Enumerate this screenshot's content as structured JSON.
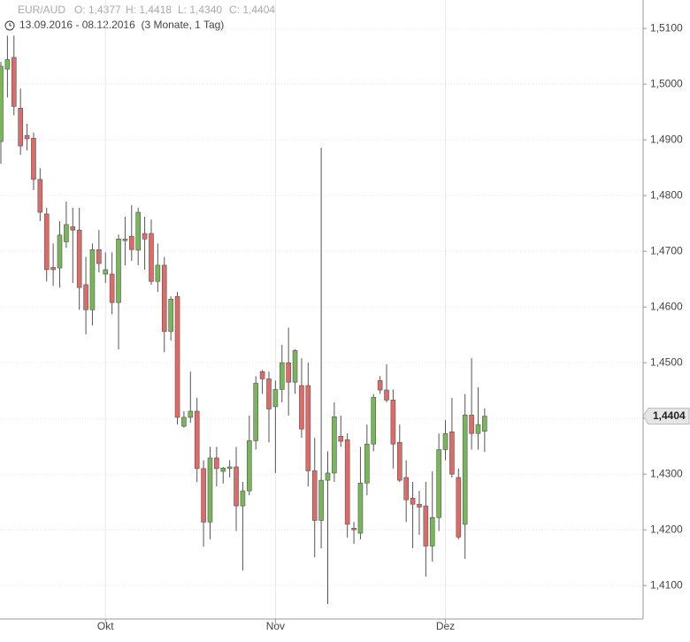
{
  "chart_data": {
    "type": "candlestick",
    "title": "EUR/AUD",
    "ohlc_labels": [
      "O: 1,4377",
      "H: 1,4418",
      "L: 1,4340",
      "C: 1,4404"
    ],
    "subtitle": "13.09.2016 - 08.12.2016  (3 Monate, 1 Tag)",
    "categories": [
      null,
      null,
      null,
      null,
      null,
      null,
      null,
      null,
      null,
      null,
      null,
      null,
      null,
      null,
      null,
      null,
      "Okt",
      null,
      null,
      null,
      null,
      null,
      null,
      null,
      null,
      null,
      null,
      null,
      null,
      null,
      null,
      null,
      null,
      null,
      null,
      null,
      null,
      null,
      null,
      null,
      null,
      null,
      "Nov",
      null,
      null,
      null,
      null,
      null,
      null,
      null,
      null,
      null,
      null,
      null,
      null,
      null,
      null,
      null,
      null,
      null,
      null,
      null,
      null,
      null,
      null,
      null,
      null,
      null,
      "Dez",
      null,
      null,
      null,
      null,
      null,
      null
    ],
    "open": [
      1.4897,
      1.5027,
      1.5048,
      1.4957,
      1.4908,
      1.4903,
      1.4829,
      1.4767,
      1.4671,
      1.467,
      1.4717,
      1.4744,
      1.4738,
      1.464,
      1.4595,
      1.4703,
      1.4659,
      1.4659,
      1.4608,
      1.4719,
      1.4727,
      1.4702,
      1.4732,
      1.4732,
      1.4646,
      1.4675,
      1.4556,
      1.4619,
      1.4386,
      1.4402,
      1.4413,
      1.431,
      1.4214,
      1.4329,
      1.4305,
      1.431,
      1.4313,
      1.4243,
      1.427,
      1.436,
      1.4484,
      1.4471,
      1.4421,
      1.4452,
      1.45,
      1.4465,
      1.4459,
      1.4459,
      1.4306,
      1.4217,
      1.4289,
      1.4302,
      1.4368,
      1.4362,
      1.4203,
      1.4194,
      1.4284,
      1.4354,
      1.4468,
      1.4451,
      1.4433,
      1.4357,
      1.4294,
      1.4257,
      1.4246,
      1.4243,
      1.4171,
      1.4222,
      1.4344,
      1.4376,
      1.4294,
      1.421,
      1.4406,
      1.4373,
      1.4377
    ],
    "high": [
      1.504,
      1.5087,
      1.5087,
      1.4992,
      1.4929,
      1.4913,
      1.4849,
      1.4778,
      1.4714,
      1.4754,
      1.4789,
      1.4778,
      1.4778,
      1.469,
      1.4714,
      1.4738,
      1.4698,
      1.4698,
      1.473,
      1.4762,
      1.4783,
      1.4778,
      1.4762,
      1.4757,
      1.4714,
      1.469,
      1.4619,
      1.4627,
      1.4413,
      1.4484,
      1.4437,
      1.4325,
      1.4349,
      1.4349,
      1.4313,
      1.4325,
      1.4349,
      1.4286,
      1.4405,
      1.4476,
      1.4487,
      1.4484,
      1.4468,
      1.4532,
      1.4563,
      1.4524,
      1.4508,
      1.45,
      1.4365,
      1.4886,
      1.4341,
      1.4429,
      1.4405,
      1.4373,
      1.4214,
      1.4349,
      1.4389,
      1.4444,
      1.4476,
      1.4497,
      1.4452,
      1.4389,
      1.4325,
      1.4286,
      1.427,
      1.4286,
      1.4305,
      1.4373,
      1.4397,
      1.4437,
      1.431,
      1.4444,
      1.4508,
      1.4456,
      1.4418
    ],
    "low": [
      1.4857,
      1.4976,
      1.4944,
      1.4873,
      1.4881,
      1.481,
      1.4754,
      1.4646,
      1.4638,
      1.4635,
      1.4706,
      1.4643,
      1.4595,
      1.4551,
      1.4567,
      1.4662,
      1.4643,
      1.4587,
      1.4524,
      1.4675,
      1.4683,
      1.4675,
      1.4667,
      1.464,
      1.4627,
      1.4519,
      1.454,
      1.4389,
      1.4383,
      1.4392,
      1.4286,
      1.417,
      1.4183,
      1.4278,
      1.4283,
      1.4294,
      1.4198,
      1.4127,
      1.4262,
      1.4344,
      1.4444,
      1.4357,
      1.4302,
      1.4429,
      1.4405,
      1.4444,
      1.4365,
      1.4278,
      1.4151,
      1.4167,
      1.4067,
      1.4286,
      1.4349,
      1.4186,
      1.4175,
      1.4183,
      1.4262,
      1.4341,
      1.4444,
      1.4429,
      1.431,
      1.4286,
      1.4214,
      1.4167,
      1.4191,
      1.4116,
      1.4143,
      1.4198,
      1.4325,
      1.4294,
      1.4183,
      1.4148,
      1.4344,
      1.4344,
      1.434
    ],
    "close": [
      1.5032,
      1.5044,
      1.496,
      1.4889,
      1.4902,
      1.4829,
      1.477,
      1.4667,
      1.4667,
      1.4729,
      1.4748,
      1.4738,
      1.4635,
      1.4595,
      1.4703,
      1.4678,
      1.4667,
      1.4608,
      1.4722,
      1.4722,
      1.4703,
      1.477,
      1.4722,
      1.4646,
      1.4675,
      1.4556,
      1.4614,
      1.4402,
      1.4402,
      1.4413,
      1.431,
      1.4214,
      1.4329,
      1.431,
      1.4311,
      1.4313,
      1.4243,
      1.427,
      1.436,
      1.4463,
      1.4471,
      1.4417,
      1.4452,
      1.45,
      1.4465,
      1.4522,
      1.4381,
      1.4306,
      1.4217,
      1.4289,
      1.4302,
      1.4403,
      1.4359,
      1.421,
      1.42,
      1.4284,
      1.4354,
      1.4438,
      1.4451,
      1.4433,
      1.4354,
      1.4289,
      1.4254,
      1.4246,
      1.4241,
      1.4171,
      1.4222,
      1.4344,
      1.4373,
      1.43,
      1.4187,
      1.4406,
      1.4373,
      1.4389,
      1.4404
    ],
    "up_color": "#78b65a",
    "down_color": "#de6b67",
    "ylim": [
      1.404,
      1.5151
    ],
    "yticks": [
      {
        "value": 1.41,
        "label": "1,4100"
      },
      {
        "value": 1.42,
        "label": "1,4200"
      },
      {
        "value": 1.43,
        "label": "1,4300"
      },
      {
        "value": 1.44,
        "label": "1,4400"
      },
      {
        "value": 1.45,
        "label": "1,4500"
      },
      {
        "value": 1.46,
        "label": "1,4600"
      },
      {
        "value": 1.47,
        "label": "1,4700"
      },
      {
        "value": 1.48,
        "label": "1,4800"
      },
      {
        "value": 1.49,
        "label": "1,4900"
      },
      {
        "value": 1.5,
        "label": "1,5000"
      },
      {
        "value": 1.51,
        "label": "1,5100"
      }
    ],
    "last_price": {
      "value": 1.4404,
      "label": "1,4404"
    },
    "grid": true
  }
}
